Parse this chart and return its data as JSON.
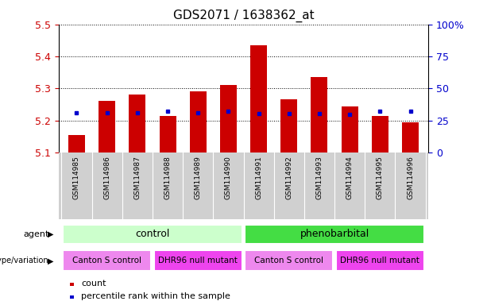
{
  "title": "GDS2071 / 1638362_at",
  "samples": [
    "GSM114985",
    "GSM114986",
    "GSM114987",
    "GSM114988",
    "GSM114989",
    "GSM114990",
    "GSM114991",
    "GSM114992",
    "GSM114993",
    "GSM114994",
    "GSM114995",
    "GSM114996"
  ],
  "bar_values": [
    5.155,
    5.26,
    5.28,
    5.215,
    5.29,
    5.31,
    5.435,
    5.265,
    5.335,
    5.245,
    5.215,
    5.195
  ],
  "blue_dot_values": [
    5.225,
    5.225,
    5.225,
    5.23,
    5.225,
    5.228,
    5.222,
    5.222,
    5.222,
    5.218,
    5.228,
    5.228
  ],
  "ymin": 5.1,
  "ymax": 5.5,
  "yticks": [
    5.1,
    5.2,
    5.3,
    5.4,
    5.5
  ],
  "ytick_labels": [
    "5.1",
    "5.2",
    "5.3",
    "5.4",
    "5.5"
  ],
  "right_ytick_pcts": [
    0,
    25,
    50,
    75,
    100
  ],
  "right_ytick_labels": [
    "0",
    "25",
    "50",
    "75",
    "100%"
  ],
  "bar_color": "#cc0000",
  "dot_color": "#0000cc",
  "agent_color_light": "#ccffcc",
  "agent_color_dark": "#44dd44",
  "genotype_color_light": "#ee88ee",
  "genotype_color_dark": "#ee44ee",
  "tick_color_left": "#cc0000",
  "tick_color_right": "#0000cc",
  "sample_bg_color": "#d0d0d0",
  "sample_sep_color": "#ffffff"
}
